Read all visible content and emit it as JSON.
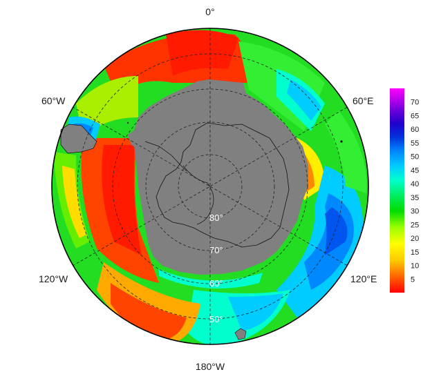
{
  "projection": "south-polar-stereographic",
  "longitude_labels": {
    "top": "0°",
    "upper_right": "60°E",
    "lower_right": "120°E",
    "bottom": "180°W",
    "lower_left": "120°W",
    "upper_left": "60°W"
  },
  "latitude_labels": [
    "80°",
    "70°",
    "60°",
    "50°"
  ],
  "latitude_circles_deg": [
    -80,
    -70,
    -60,
    -50
  ],
  "meridians_deg": [
    0,
    60,
    120,
    180,
    240,
    300
  ],
  "colors": {
    "land": "#808080",
    "coastline": "#111111",
    "grid": "#222222",
    "frame": "#000000"
  },
  "colorbar": {
    "min": 0,
    "max": 75,
    "ticks": [
      "5",
      "10",
      "15",
      "20",
      "25",
      "30",
      "35",
      "40",
      "45",
      "50",
      "55",
      "60",
      "65",
      "70"
    ],
    "colors_low_to_high": [
      "#ff0000",
      "#ff6600",
      "#ffcc00",
      "#ffff00",
      "#99ff00",
      "#00dd00",
      "#00ee66",
      "#00ffcc",
      "#00ccff",
      "#0088ff",
      "#0033dd",
      "#2200cc",
      "#7700dd",
      "#cc00ee",
      "#ff00ff"
    ]
  }
}
